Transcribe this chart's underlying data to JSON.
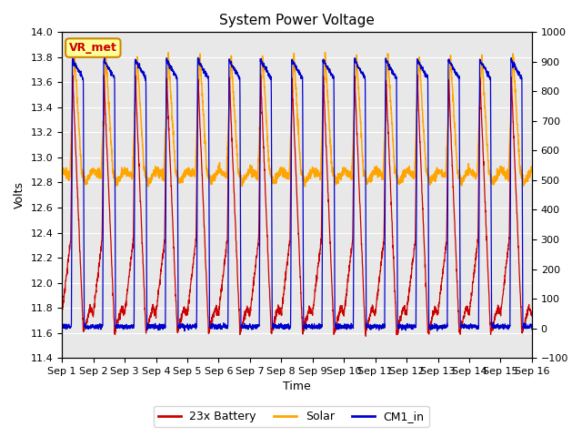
{
  "title": "System Power Voltage",
  "xlabel": "Time",
  "ylabel_left": "Volts",
  "ylim_left": [
    11.4,
    14.0
  ],
  "ylim_right": [
    -100,
    1000
  ],
  "yticks_left": [
    11.4,
    11.6,
    11.8,
    12.0,
    12.2,
    12.4,
    12.6,
    12.8,
    13.0,
    13.2,
    13.4,
    13.6,
    13.8,
    14.0
  ],
  "yticks_right": [
    -100,
    0,
    100,
    200,
    300,
    400,
    500,
    600,
    700,
    800,
    900,
    1000
  ],
  "xtick_labels": [
    "Sep 1",
    "Sep 2",
    "Sep 3",
    "Sep 4",
    "Sep 5",
    "Sep 6",
    "Sep 7",
    "Sep 8",
    "Sep 9",
    "Sep 10",
    "Sep 11",
    "Sep 12",
    "Sep 13",
    "Sep 14",
    "Sep 15",
    "Sep 16"
  ],
  "num_days": 15,
  "color_battery": "#cc0000",
  "color_solar": "#ffa500",
  "color_cm1": "#0000cc",
  "plot_bg_color": "#e8e8e8",
  "legend_labels": [
    "23x Battery",
    "Solar",
    "CM1_in"
  ],
  "annotation_text": "VR_met",
  "annotation_box_facecolor": "#ffff99",
  "annotation_box_edgecolor": "#cc8800",
  "annotation_text_color": "#cc0000"
}
